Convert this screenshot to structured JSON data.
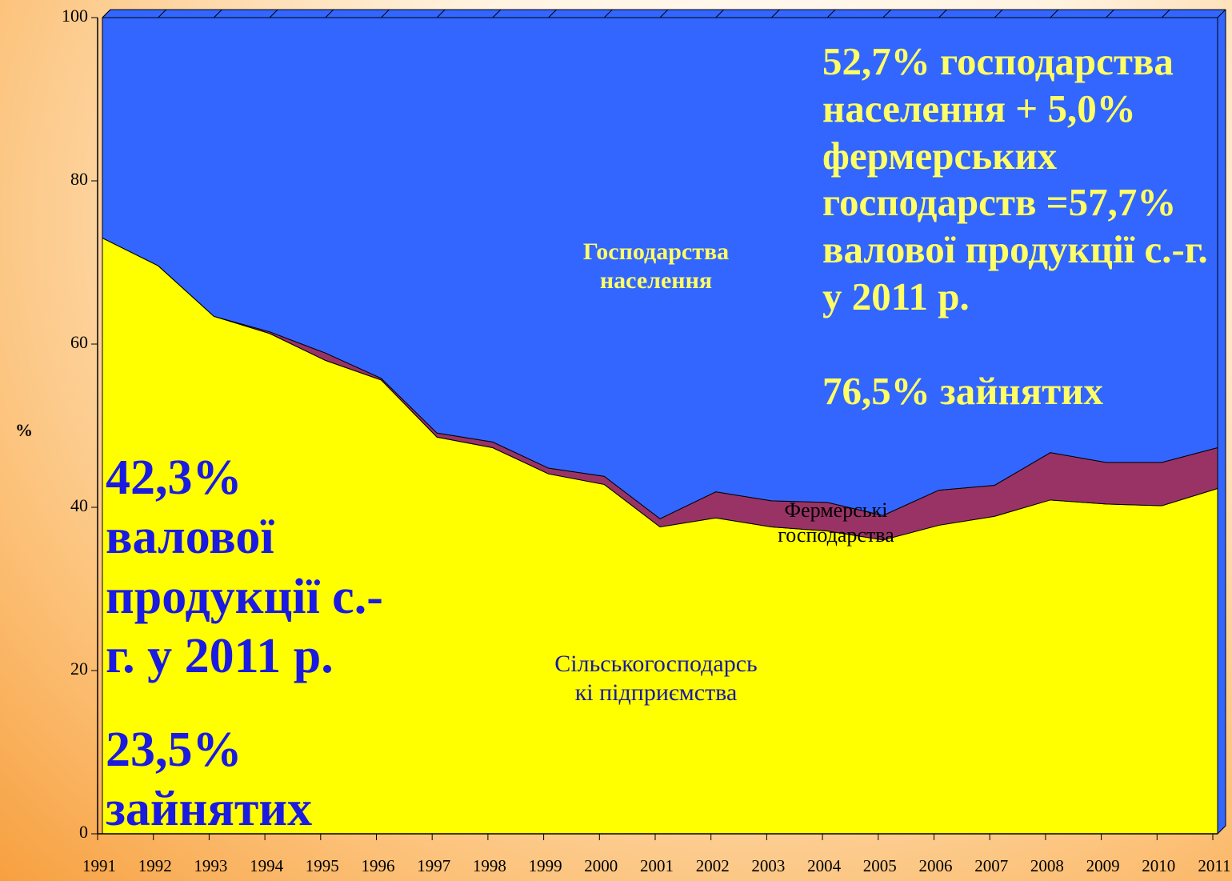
{
  "chart_data": {
    "type": "stacked_area",
    "y_label": "%",
    "categories": [
      "1991",
      "1992",
      "1993",
      "1994",
      "1995",
      "1996",
      "1997",
      "1998",
      "1999",
      "2000",
      "2001",
      "2002",
      "2003",
      "2004",
      "2005",
      "2006",
      "2007",
      "2008",
      "2009",
      "2010",
      "2011"
    ],
    "series": [
      {
        "name": "Сільськогосподарські підприємства",
        "color": "#ffff00",
        "label_color": "#1a1aa0",
        "values": [
          73.0,
          69.6,
          63.4,
          61.3,
          58.0,
          55.6,
          48.6,
          47.3,
          44.1,
          42.8,
          37.6,
          38.7,
          37.6,
          37.1,
          36.0,
          37.8,
          38.9,
          40.9,
          40.4,
          40.2,
          42.3
        ]
      },
      {
        "name": "Фермерські господарства",
        "color": "#993366",
        "label_color": "#000000",
        "values": [
          0,
          0,
          0,
          0.2,
          0.9,
          0.2,
          0.5,
          0.7,
          0.7,
          1.0,
          1.0,
          3.2,
          3.2,
          3.5,
          3.0,
          4.3,
          3.8,
          5.8,
          5.1,
          5.3,
          5.0
        ]
      },
      {
        "name": "Господарства населення",
        "color": "#3366ff",
        "label_color": "#ffff66",
        "values": [
          27.0,
          30.4,
          36.6,
          38.5,
          41.1,
          44.2,
          50.9,
          52.0,
          55.2,
          56.2,
          61.4,
          58.1,
          59.2,
          59.4,
          61.0,
          57.9,
          57.3,
          53.3,
          54.5,
          54.5,
          52.7
        ]
      }
    ],
    "ylim": [
      0,
      100
    ],
    "yticks": [
      0,
      20,
      40,
      60,
      80,
      100
    ],
    "annotations": [
      "52,7% господарства населення + 5,0% фермерських господарств =57,7% валової продукції с.-г. у 2011 р.",
      "76,5% зайнятих",
      "42,3% валової продукції с.-г. у 2011 р.",
      "23,5% зайнятих"
    ]
  }
}
